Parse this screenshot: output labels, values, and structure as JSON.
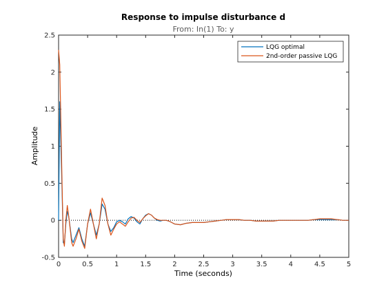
{
  "chart_data": {
    "type": "line",
    "title": "Response to impulse disturbance d",
    "subtitle": "From: In(1)  To: y",
    "xlabel": "Time (seconds)",
    "ylabel": "Amplitude",
    "xlim": [
      0,
      5
    ],
    "ylim": [
      -0.5,
      2.5
    ],
    "xticks": [
      0,
      0.5,
      1,
      1.5,
      2,
      2.5,
      3,
      3.5,
      4,
      4.5,
      5
    ],
    "yticks": [
      -0.5,
      0,
      0.5,
      1,
      1.5,
      2,
      2.5
    ],
    "xtick_labels": [
      "0",
      "0.5",
      "1",
      "1.5",
      "2",
      "2.5",
      "3",
      "3.5",
      "4",
      "4.5",
      "5"
    ],
    "ytick_labels": [
      "-0.5",
      "0",
      "0.5",
      "1",
      "1.5",
      "2",
      "2.5"
    ],
    "grid": false,
    "reference_line": {
      "y": 0,
      "style": "dotted",
      "color": "#000000"
    },
    "legend_position": "top-right",
    "series": [
      {
        "name": "LQG optimal",
        "color": "#0072BD",
        "x": [
          0,
          0.02,
          0.04,
          0.06,
          0.08,
          0.1,
          0.125,
          0.15,
          0.175,
          0.2,
          0.225,
          0.25,
          0.3,
          0.35,
          0.4,
          0.45,
          0.5,
          0.55,
          0.6,
          0.65,
          0.7,
          0.75,
          0.8,
          0.85,
          0.9,
          0.95,
          1.0,
          1.05,
          1.1,
          1.15,
          1.2,
          1.25,
          1.3,
          1.35,
          1.4,
          1.45,
          1.5,
          1.55,
          1.6,
          1.65,
          1.7,
          1.75,
          1.8,
          1.85,
          1.9,
          1.95,
          2.0,
          2.1,
          2.2,
          2.3,
          2.4,
          2.5,
          2.6,
          2.7,
          2.8,
          2.9,
          3.0,
          3.1,
          3.2,
          3.3,
          3.4,
          3.5,
          3.6,
          3.7,
          3.8,
          3.9,
          4.0,
          4.1,
          4.2,
          4.3,
          4.4,
          4.5,
          4.6,
          4.7,
          4.8,
          4.9,
          5.0
        ],
        "y": [
          0.0,
          1.6,
          1.0,
          0.4,
          -0.3,
          -0.32,
          -0.05,
          0.12,
          0.05,
          -0.1,
          -0.25,
          -0.3,
          -0.2,
          -0.1,
          -0.25,
          -0.35,
          -0.05,
          0.1,
          -0.05,
          -0.2,
          -0.05,
          0.22,
          0.15,
          -0.05,
          -0.15,
          -0.1,
          -0.02,
          0.0,
          -0.02,
          -0.05,
          0.02,
          0.05,
          0.03,
          -0.02,
          -0.05,
          0.02,
          0.07,
          0.09,
          0.07,
          0.03,
          0.0,
          -0.01,
          0.0,
          0.0,
          -0.01,
          -0.03,
          -0.05,
          -0.06,
          -0.04,
          -0.03,
          -0.03,
          -0.03,
          -0.02,
          -0.01,
          0.0,
          0.01,
          0.01,
          0.01,
          0.0,
          0.0,
          -0.01,
          -0.01,
          -0.01,
          -0.01,
          0.0,
          0.0,
          0.0,
          0.0,
          0.0,
          0.0,
          0.01,
          0.01,
          0.01,
          0.01,
          0.01,
          0.0,
          0.0
        ]
      },
      {
        "name": "2nd-order passive LQG",
        "color": "#D95319",
        "x": [
          0,
          0.02,
          0.04,
          0.06,
          0.08,
          0.1,
          0.125,
          0.15,
          0.175,
          0.2,
          0.225,
          0.25,
          0.3,
          0.35,
          0.4,
          0.45,
          0.5,
          0.55,
          0.6,
          0.65,
          0.7,
          0.75,
          0.8,
          0.85,
          0.9,
          0.95,
          1.0,
          1.05,
          1.1,
          1.15,
          1.2,
          1.25,
          1.3,
          1.35,
          1.4,
          1.45,
          1.5,
          1.55,
          1.6,
          1.65,
          1.7,
          1.75,
          1.8,
          1.85,
          1.9,
          1.95,
          2.0,
          2.1,
          2.2,
          2.3,
          2.4,
          2.5,
          2.6,
          2.7,
          2.8,
          2.9,
          3.0,
          3.1,
          3.2,
          3.3,
          3.4,
          3.5,
          3.6,
          3.7,
          3.8,
          3.9,
          4.0,
          4.1,
          4.2,
          4.3,
          4.4,
          4.5,
          4.6,
          4.7,
          4.8,
          4.9,
          5.0
        ],
        "y": [
          2.3,
          2.1,
          1.3,
          0.5,
          -0.25,
          -0.35,
          0.0,
          0.2,
          0.05,
          -0.12,
          -0.3,
          -0.35,
          -0.25,
          -0.12,
          -0.28,
          -0.38,
          -0.05,
          0.15,
          -0.05,
          -0.25,
          -0.05,
          0.3,
          0.2,
          -0.05,
          -0.2,
          -0.12,
          -0.05,
          -0.02,
          -0.05,
          -0.08,
          -0.02,
          0.03,
          0.04,
          0.0,
          -0.03,
          0.02,
          0.06,
          0.09,
          0.07,
          0.03,
          0.01,
          0.0,
          0.0,
          0.0,
          -0.01,
          -0.03,
          -0.05,
          -0.06,
          -0.04,
          -0.03,
          -0.03,
          -0.03,
          -0.02,
          -0.01,
          0.0,
          0.01,
          0.01,
          0.01,
          0.0,
          0.0,
          -0.01,
          -0.01,
          -0.01,
          -0.01,
          0.0,
          0.0,
          0.0,
          0.0,
          0.0,
          0.0,
          0.01,
          0.02,
          0.02,
          0.02,
          0.01,
          0.0,
          0.0
        ]
      }
    ]
  }
}
